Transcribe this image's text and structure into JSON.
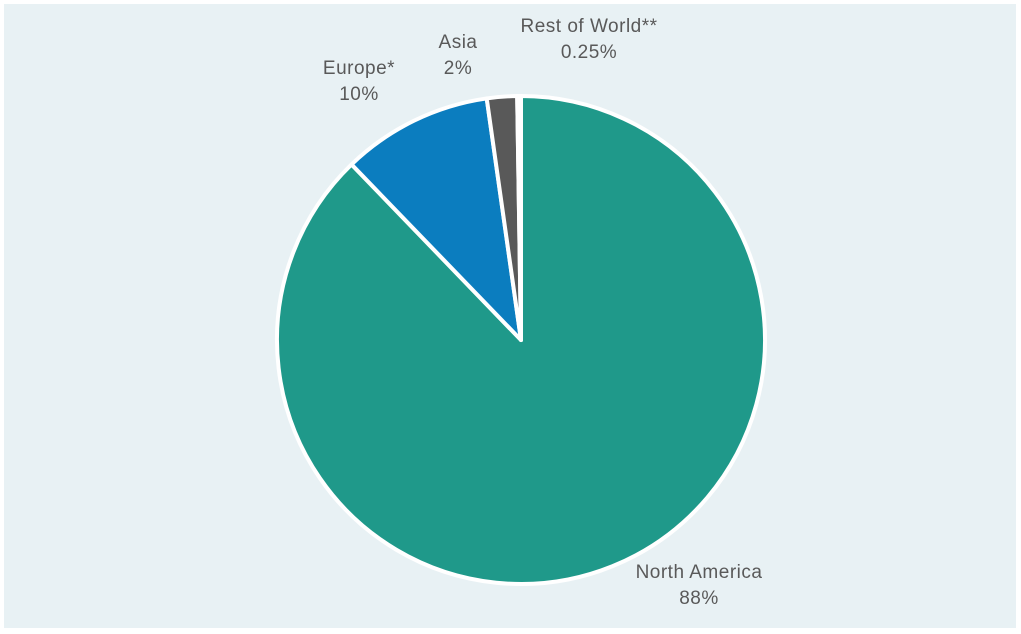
{
  "chart_data": {
    "type": "pie",
    "title": "",
    "start_angle_deg": 0,
    "direction": "clockwise",
    "slices": [
      {
        "label": "North America",
        "display_value": "88%",
        "value": 88,
        "color": "#1f998a"
      },
      {
        "label": "Europe*",
        "display_value": "10%",
        "value": 10,
        "color": "#0b7dbf"
      },
      {
        "label": "Asia",
        "display_value": "2%",
        "value": 2,
        "color": "#595959"
      },
      {
        "label": "Rest of World**",
        "display_value": "0.25%",
        "value": 0.25,
        "color": "#c7d0d3"
      }
    ],
    "slice_border_color": "#ffffff",
    "background_color": "#e8f1f4"
  }
}
